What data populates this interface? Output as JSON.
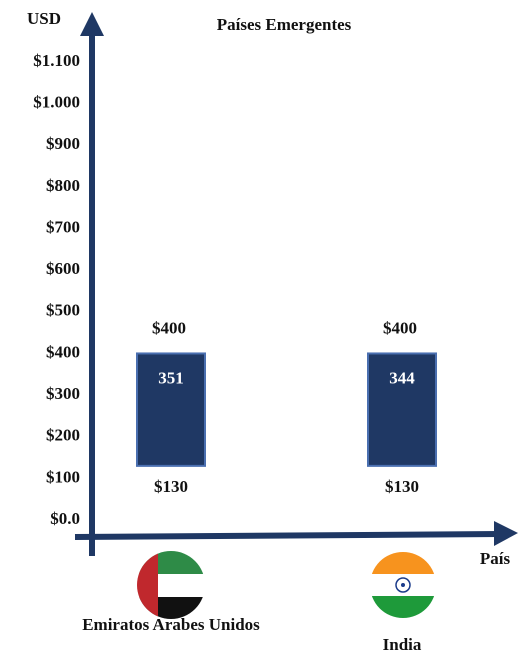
{
  "chart_data": {
    "type": "range-bar",
    "title": "Países Emergentes",
    "y_label": "USD",
    "x_label": "País",
    "categories": [
      "Emiratos Arabes Unidos",
      "India"
    ],
    "low": [
      130,
      130
    ],
    "low_labels": [
      "$130",
      "$130"
    ],
    "high": [
      400,
      400
    ],
    "high_labels": [
      "$400",
      "$400"
    ],
    "values": [
      351,
      344
    ],
    "color": "#1f3864",
    "ylim": [
      0,
      1100
    ],
    "yticks": [
      {
        "value": 0,
        "label": "$0.0"
      },
      {
        "value": 100,
        "label": "$100"
      },
      {
        "value": 200,
        "label": "$200"
      },
      {
        "value": 300,
        "label": "$300"
      },
      {
        "value": 400,
        "label": "$400"
      },
      {
        "value": 500,
        "label": "$500"
      },
      {
        "value": 600,
        "label": "$600"
      },
      {
        "value": 700,
        "label": "$700"
      },
      {
        "value": 800,
        "label": "$800"
      },
      {
        "value": 900,
        "label": "$900"
      },
      {
        "value": 1000,
        "label": "$1.000"
      },
      {
        "value": 1100,
        "label": "$1.100"
      }
    ]
  }
}
